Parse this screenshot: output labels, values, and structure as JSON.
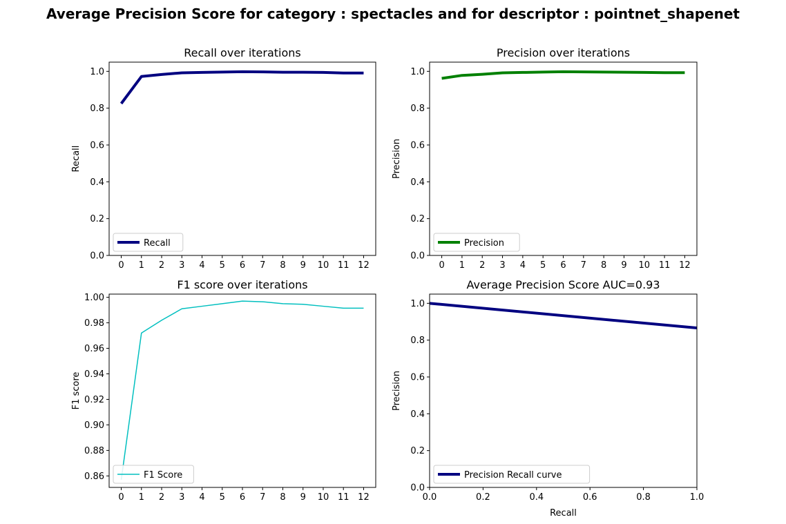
{
  "figure": {
    "suptitle": "Average Precision Score for category : spectacles and for descriptor : pointnet_shapenet"
  },
  "chart_data": [
    {
      "type": "line",
      "title": "Recall over iterations",
      "xlabel": "",
      "ylabel": "Recall",
      "x": [
        0,
        1,
        2,
        3,
        4,
        5,
        6,
        7,
        8,
        9,
        10,
        11,
        12
      ],
      "xticks": [
        "0",
        "1",
        "2",
        "3",
        "4",
        "5",
        "6",
        "7",
        "8",
        "9",
        "10",
        "11",
        "12"
      ],
      "xlim": [
        -0.6,
        12.6
      ],
      "ylim": [
        0.0,
        1.05
      ],
      "yticks": [
        "0.0",
        "0.2",
        "0.4",
        "0.6",
        "0.8",
        "1.0"
      ],
      "ytick_values": [
        0.0,
        0.2,
        0.4,
        0.6,
        0.8,
        1.0
      ],
      "series": [
        {
          "name": "Recall",
          "color": "#000080",
          "linewidth": 4,
          "values": [
            0.825,
            0.972,
            0.983,
            0.992,
            0.994,
            0.996,
            0.998,
            0.997,
            0.995,
            0.995,
            0.994,
            0.991,
            0.991
          ]
        }
      ],
      "legend": "lower-left",
      "grid": false
    },
    {
      "type": "line",
      "title": "Precision over iterations",
      "xlabel": "",
      "ylabel": "Precision",
      "x": [
        0,
        1,
        2,
        3,
        4,
        5,
        6,
        7,
        8,
        9,
        10,
        11,
        12
      ],
      "xticks": [
        "0",
        "1",
        "2",
        "3",
        "4",
        "5",
        "6",
        "7",
        "8",
        "9",
        "10",
        "11",
        "12"
      ],
      "xlim": [
        -0.6,
        12.6
      ],
      "ylim": [
        0.0,
        1.05
      ],
      "yticks": [
        "0.0",
        "0.2",
        "0.4",
        "0.6",
        "0.8",
        "1.0"
      ],
      "ytick_values": [
        0.0,
        0.2,
        0.4,
        0.6,
        0.8,
        1.0
      ],
      "series": [
        {
          "name": "Precision",
          "color": "#008000",
          "linewidth": 4,
          "values": [
            0.962,
            0.978,
            0.984,
            0.992,
            0.994,
            0.996,
            0.998,
            0.997,
            0.996,
            0.995,
            0.994,
            0.993,
            0.993
          ]
        }
      ],
      "legend": "lower-left",
      "grid": false
    },
    {
      "type": "line",
      "title": "F1 score over iterations",
      "xlabel": "",
      "ylabel": "F1 score",
      "x": [
        0,
        1,
        2,
        3,
        4,
        5,
        6,
        7,
        8,
        9,
        10,
        11,
        12
      ],
      "xticks": [
        "0",
        "1",
        "2",
        "3",
        "4",
        "5",
        "6",
        "7",
        "8",
        "9",
        "10",
        "11",
        "12"
      ],
      "xlim": [
        -0.6,
        12.6
      ],
      "ylim": [
        0.851,
        1.0025
      ],
      "yticks": [
        "0.86",
        "0.88",
        "0.90",
        "0.92",
        "0.94",
        "0.96",
        "0.98",
        "1.00"
      ],
      "ytick_values": [
        0.86,
        0.88,
        0.9,
        0.92,
        0.94,
        0.96,
        0.98,
        1.0
      ],
      "series": [
        {
          "name": "F1 Score",
          "color": "#00bfbf",
          "linewidth": 1.5,
          "values": [
            0.857,
            0.972,
            0.982,
            0.991,
            0.993,
            0.995,
            0.997,
            0.9965,
            0.995,
            0.9945,
            0.993,
            0.9915,
            0.9915
          ]
        }
      ],
      "legend": "lower-left",
      "grid": false
    },
    {
      "type": "line",
      "title": "Average Precision Score AUC=0.93",
      "xlabel": "Recall",
      "ylabel": "Precision",
      "xlim": [
        0.0,
        1.0
      ],
      "ylim": [
        0.0,
        1.05
      ],
      "xticks": [
        "0.0",
        "0.2",
        "0.4",
        "0.6",
        "0.8",
        "1.0"
      ],
      "xtick_values": [
        0.0,
        0.2,
        0.4,
        0.6,
        0.8,
        1.0
      ],
      "yticks": [
        "0.0",
        "0.2",
        "0.4",
        "0.6",
        "0.8",
        "1.0"
      ],
      "ytick_values": [
        0.0,
        0.2,
        0.4,
        0.6,
        0.8,
        1.0
      ],
      "series": [
        {
          "name": "Precision Recall curve",
          "color": "#000080",
          "linewidth": 4,
          "x": [
            0.0,
            1.0
          ],
          "values": [
            1.0,
            0.866
          ]
        }
      ],
      "legend": "lower-left",
      "grid": false
    }
  ]
}
